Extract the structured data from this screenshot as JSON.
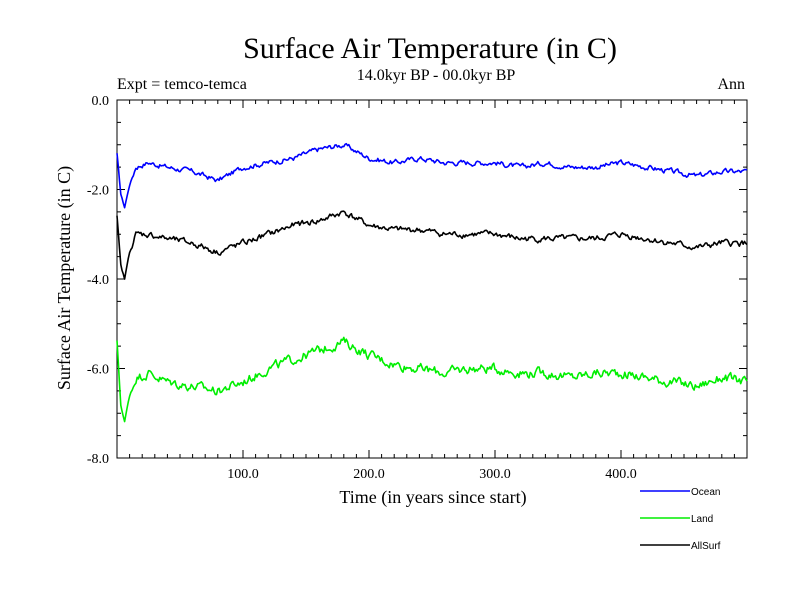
{
  "chart_data": {
    "type": "line",
    "title": "Surface Air Temperature (in C)",
    "subtitle": "14.0kyr BP - 00.0kyr BP",
    "experiment": "Expt = temco-temca",
    "season": "Ann",
    "xlabel": "Time (in years since start)",
    "ylabel": "Surface Air Temperature (in C)",
    "xlim": [
      0,
      500
    ],
    "ylim": [
      -8.0,
      0.0
    ],
    "xticks": [
      100,
      200,
      300,
      400
    ],
    "xtick_labels": [
      "100.0",
      "200.0",
      "300.0",
      "400.0"
    ],
    "yticks": [
      0,
      -2,
      -4,
      -6,
      -8
    ],
    "ytick_labels": [
      "0.0",
      "-2.0",
      "-4.0",
      "-6.0",
      "-8.0"
    ],
    "grid": false,
    "legend_position": "bottom-right, outside plot",
    "series": [
      {
        "name": "Ocean",
        "color": "#0000ff",
        "x": [
          0,
          3,
          6,
          10,
          15,
          25,
          40,
          60,
          80,
          100,
          120,
          140,
          160,
          180,
          200,
          220,
          240,
          260,
          280,
          300,
          320,
          340,
          360,
          380,
          400,
          420,
          440,
          460,
          480,
          500
        ],
        "values": [
          -1.2,
          -2.1,
          -2.4,
          -1.9,
          -1.5,
          -1.4,
          -1.5,
          -1.6,
          -1.8,
          -1.5,
          -1.4,
          -1.3,
          -1.1,
          -1.0,
          -1.3,
          -1.4,
          -1.3,
          -1.4,
          -1.4,
          -1.4,
          -1.5,
          -1.4,
          -1.5,
          -1.5,
          -1.4,
          -1.5,
          -1.6,
          -1.7,
          -1.6,
          -1.6
        ]
      },
      {
        "name": "Land",
        "color": "#00ee00",
        "x": [
          0,
          3,
          6,
          10,
          15,
          25,
          40,
          60,
          80,
          100,
          120,
          140,
          160,
          180,
          200,
          220,
          240,
          260,
          280,
          300,
          320,
          340,
          360,
          380,
          400,
          420,
          440,
          460,
          480,
          500
        ],
        "values": [
          -5.4,
          -6.8,
          -7.2,
          -6.6,
          -6.2,
          -6.1,
          -6.3,
          -6.4,
          -6.5,
          -6.3,
          -6.0,
          -5.8,
          -5.6,
          -5.4,
          -5.7,
          -5.9,
          -6.0,
          -6.1,
          -6.0,
          -6.0,
          -6.1,
          -6.1,
          -6.2,
          -6.1,
          -6.1,
          -6.2,
          -6.3,
          -6.4,
          -6.2,
          -6.3
        ]
      },
      {
        "name": "AllSurf",
        "color": "#000000",
        "x": [
          0,
          3,
          6,
          10,
          15,
          25,
          40,
          60,
          80,
          100,
          120,
          140,
          160,
          180,
          200,
          220,
          240,
          260,
          280,
          300,
          320,
          340,
          360,
          380,
          400,
          420,
          440,
          460,
          480,
          500
        ],
        "values": [
          -2.6,
          -3.7,
          -4.0,
          -3.4,
          -3.0,
          -3.0,
          -3.1,
          -3.2,
          -3.4,
          -3.2,
          -3.0,
          -2.8,
          -2.7,
          -2.5,
          -2.8,
          -2.9,
          -2.9,
          -3.0,
          -3.0,
          -3.0,
          -3.1,
          -3.1,
          -3.1,
          -3.1,
          -3.0,
          -3.1,
          -3.2,
          -3.3,
          -3.2,
          -3.2
        ]
      }
    ]
  }
}
